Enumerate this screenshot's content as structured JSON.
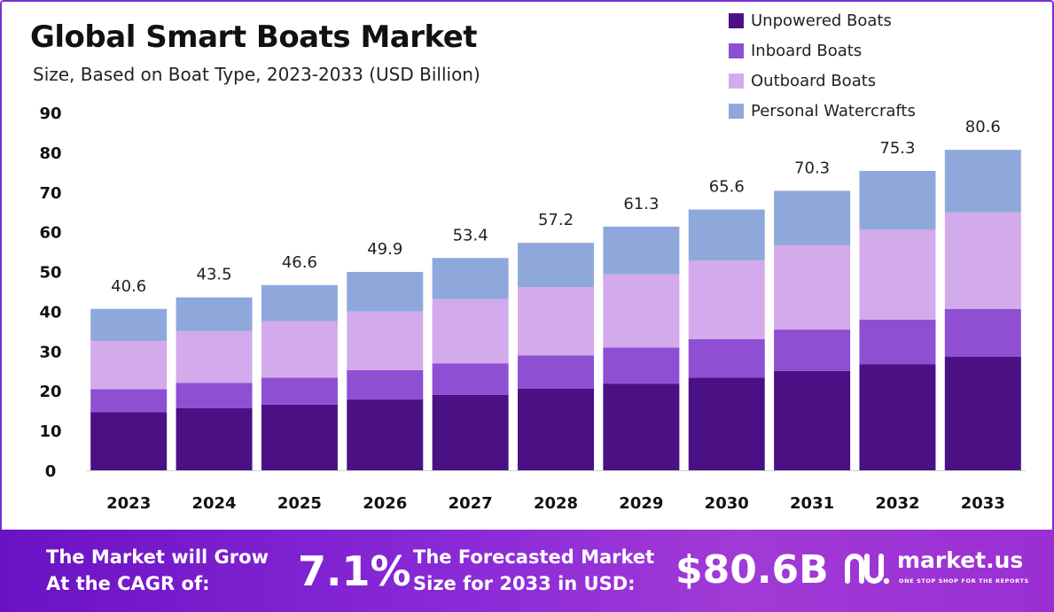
{
  "title": "Global Smart Boats Market",
  "subtitle": "Size, Based on Boat Type, 2023-2033 (USD Billion)",
  "chart_data": {
    "type": "bar",
    "stacked": true,
    "categories": [
      "2023",
      "2024",
      "2025",
      "2026",
      "2027",
      "2028",
      "2029",
      "2030",
      "2031",
      "2032",
      "2033"
    ],
    "series": [
      {
        "name": "Unpowered Boats",
        "color": "#4b1084",
        "values": [
          14.6,
          15.6,
          16.5,
          17.8,
          19.0,
          20.5,
          21.8,
          23.3,
          25.0,
          26.7,
          28.6
        ]
      },
      {
        "name": "Inboard Boats",
        "color": "#8e4fd2",
        "values": [
          5.8,
          6.4,
          6.8,
          7.4,
          7.9,
          8.4,
          9.1,
          9.7,
          10.4,
          11.2,
          12.0
        ]
      },
      {
        "name": "Outboard Boats",
        "color": "#d3aaeb",
        "values": [
          12.1,
          13.0,
          14.2,
          14.8,
          16.2,
          17.2,
          18.4,
          19.8,
          21.2,
          22.6,
          24.3
        ]
      },
      {
        "name": "Personal Watercrafts",
        "color": "#8fa8dc",
        "values": [
          8.1,
          8.5,
          9.1,
          9.9,
          10.3,
          11.1,
          12.0,
          12.8,
          13.7,
          14.8,
          15.7
        ]
      }
    ],
    "totals": [
      "40.6",
      "43.5",
      "46.6",
      "49.9",
      "53.4",
      "57.2",
      "61.3",
      "65.6",
      "70.3",
      "75.3",
      "80.6"
    ],
    "y_ticks": [
      "0",
      "10",
      "20",
      "30",
      "40",
      "50",
      "60",
      "70",
      "80",
      "90"
    ],
    "ylim": [
      0,
      90
    ],
    "legend_position": "top-right",
    "grid": false
  },
  "banner": {
    "cagr_label_line1": "The Market will Grow",
    "cagr_label_line2": "At the CAGR of:",
    "cagr_value": "7.1%",
    "forecast_label_line1": "The Forecasted Market",
    "forecast_label_line2": "Size for 2033 in USD:",
    "forecast_value": "$80.6B",
    "logo_name": "market.us",
    "logo_tagline": "ONE STOP SHOP FOR THE REPORTS"
  }
}
